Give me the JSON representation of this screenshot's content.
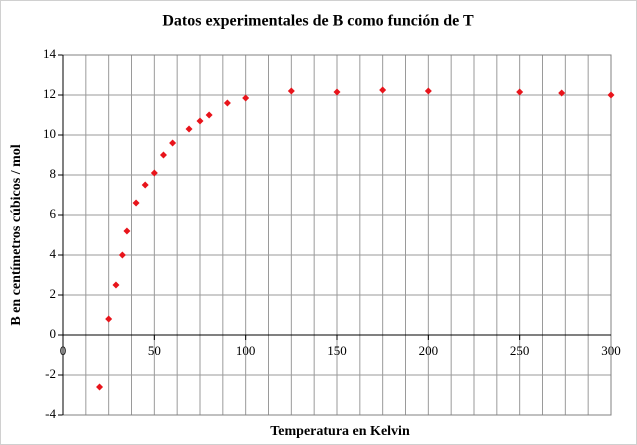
{
  "chart_data": {
    "type": "scatter",
    "title": "Datos experimentales de B  como función de T",
    "xlabel": "Temperatura en Kelvin",
    "ylabel": "B  en centímetros cúbicos / mol",
    "color": "#e8141b",
    "marker": "diamond",
    "x": [
      20,
      25,
      29,
      32.5,
      35,
      40,
      45,
      50,
      55,
      60,
      69,
      75,
      80,
      90,
      100,
      125,
      150,
      175,
      200,
      250,
      273,
      300
    ],
    "values": [
      -2.6,
      0.8,
      2.5,
      4.0,
      5.2,
      6.6,
      7.5,
      8.1,
      9.0,
      9.6,
      10.3,
      10.7,
      11.0,
      11.6,
      11.85,
      12.2,
      12.15,
      12.25,
      12.2,
      12.15,
      12.1,
      12.0
    ],
    "xlim": [
      0,
      300
    ],
    "ylim": [
      -4,
      14
    ],
    "xticks": [
      0,
      50,
      100,
      150,
      200,
      250,
      300
    ],
    "xgrid_ticks": [
      0,
      12.5,
      25,
      37.5,
      50,
      62.5,
      75,
      87.5,
      100,
      112.5,
      125,
      137.5,
      150,
      162.5,
      175,
      187.5,
      200,
      212.5,
      225,
      237.5,
      250,
      262.5,
      275,
      287.5,
      300
    ],
    "yticks": [
      -4,
      -2,
      0,
      2,
      4,
      6,
      8,
      10,
      12,
      14
    ],
    "grid": true
  }
}
